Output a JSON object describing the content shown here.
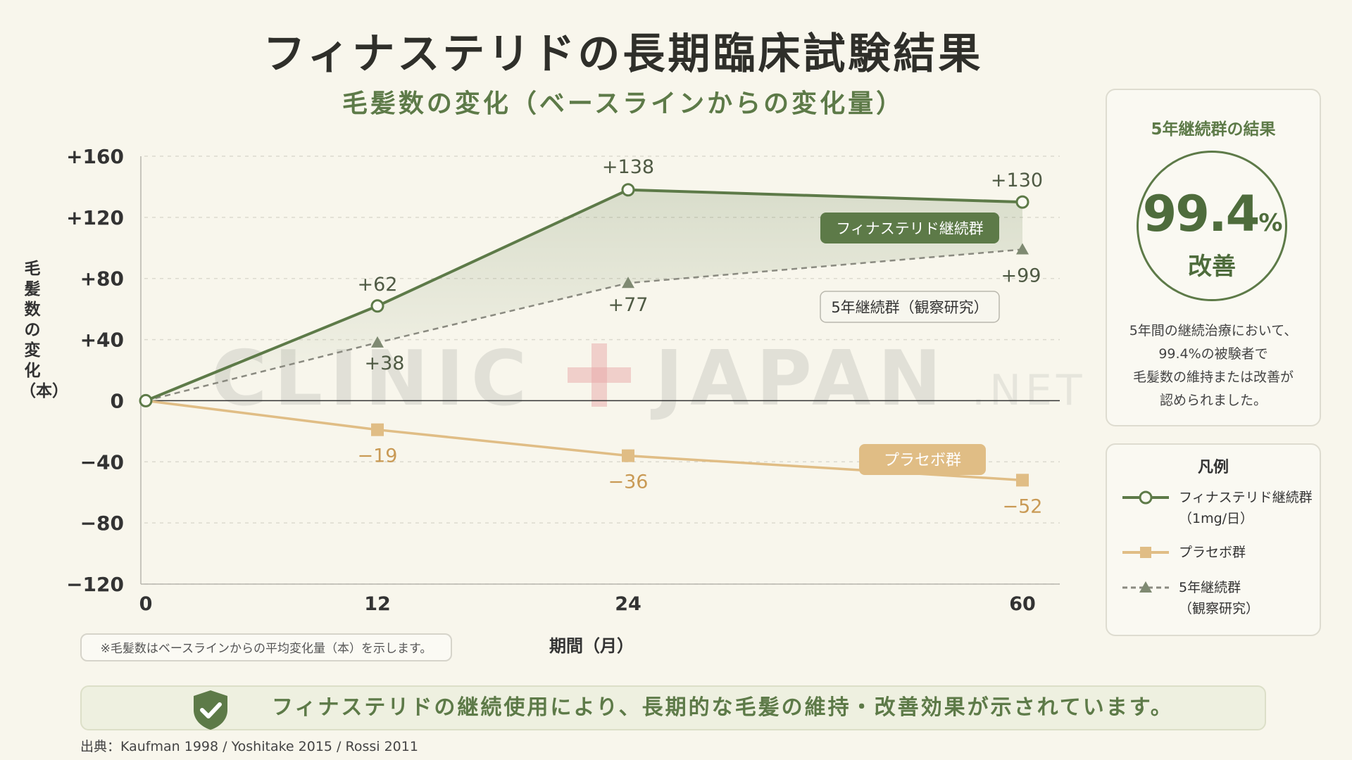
{
  "title": "フィナステリドの長期臨床試験結果",
  "subtitle": "毛髪数の変化（ベースラインからの変化量）",
  "colors": {
    "finasteride": "#5d7a48",
    "placebo": "#e0bd85",
    "observational": "#8a8a80",
    "background": "#f8f6ec"
  },
  "chart_data": {
    "type": "line",
    "xlabel": "期間（月）",
    "ylabel": "毛髪数の変化（本）",
    "x": [
      0,
      12,
      24,
      60
    ],
    "x_tick_labels": [
      "0",
      "12",
      "24",
      "60"
    ],
    "ylim": [
      -120,
      160
    ],
    "y_ticks": [
      160,
      120,
      80,
      40,
      0,
      -40,
      -80,
      -120
    ],
    "y_tick_labels": [
      "+160",
      "+120",
      "+80",
      "+40",
      "0",
      "−40",
      "−80",
      "−120"
    ],
    "grid": "horizontal dashed",
    "series": [
      {
        "name": "フィナステリド継続群",
        "legend": "フィナステリド継続群",
        "legend_sub": "（1mg/日）",
        "values": [
          0,
          62,
          138,
          130
        ],
        "labels": [
          "",
          "+62",
          "+138",
          "+130"
        ],
        "style": "solid line, circle markers, shaded area"
      },
      {
        "name": "5年継続群（観察研究）",
        "legend": "5年継続群",
        "legend_sub": "（観察研究）",
        "values": [
          0,
          38,
          77,
          99
        ],
        "labels": [
          "",
          "+38",
          "+77",
          "+99"
        ],
        "style": "dashed line, triangle markers"
      },
      {
        "name": "プラセボ群",
        "legend": "プラセボ群",
        "legend_sub": "",
        "values": [
          0,
          -19,
          -36,
          -52
        ],
        "labels": [
          "",
          "−19",
          "−36",
          "−52"
        ],
        "style": "solid line, square markers"
      }
    ],
    "legend_title": "凡例",
    "legend_placement": "right"
  },
  "watermark": {
    "left": "CLINIC",
    "right": "JAPAN",
    "suffix": ".NET"
  },
  "result_panel": {
    "title": "5年継続群の結果",
    "value": "99.4",
    "unit": "%",
    "label": "改善",
    "description_lines": [
      "5年間の継続治療において、",
      "99.4%の被験者で",
      "毛髪数の維持または改善が",
      "認められました。"
    ]
  },
  "note": "※毛髪数はベースラインからの平均変化量（本）を示します。",
  "banner": "フィナステリドの継続使用により、長期的な毛髪の維持・改善効果が示されています。",
  "banner_icon": "shield-check-icon",
  "source": "出典：Kaufman 1998 / Yoshitake 2015 / Rossi 2011"
}
